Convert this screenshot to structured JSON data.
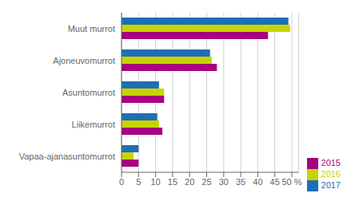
{
  "chart_data": {
    "type": "bar",
    "orientation": "horizontal",
    "categories": [
      "Muut murrot",
      "Ajoneuvomurrot",
      "Asuntomurrot",
      "Liikemurrot",
      "Vapaa-ajanasuntomurrot"
    ],
    "series": [
      {
        "name": "2017",
        "color": "#1f6eb5",
        "values": [
          49,
          26,
          11,
          10.5,
          5
        ]
      },
      {
        "name": "2016",
        "color": "#c8d400",
        "values": [
          49.5,
          26.5,
          12.5,
          11,
          3.5
        ]
      },
      {
        "name": "2015",
        "color": "#a8007f",
        "values": [
          43,
          28,
          12.5,
          12,
          5
        ]
      }
    ],
    "xlim": [
      0,
      52
    ],
    "xticks": [
      0,
      5,
      10,
      15,
      20,
      25,
      30,
      35,
      40,
      45,
      {
        "value": 50,
        "label": "50 %"
      }
    ],
    "grid": true,
    "legend": "lower right"
  }
}
